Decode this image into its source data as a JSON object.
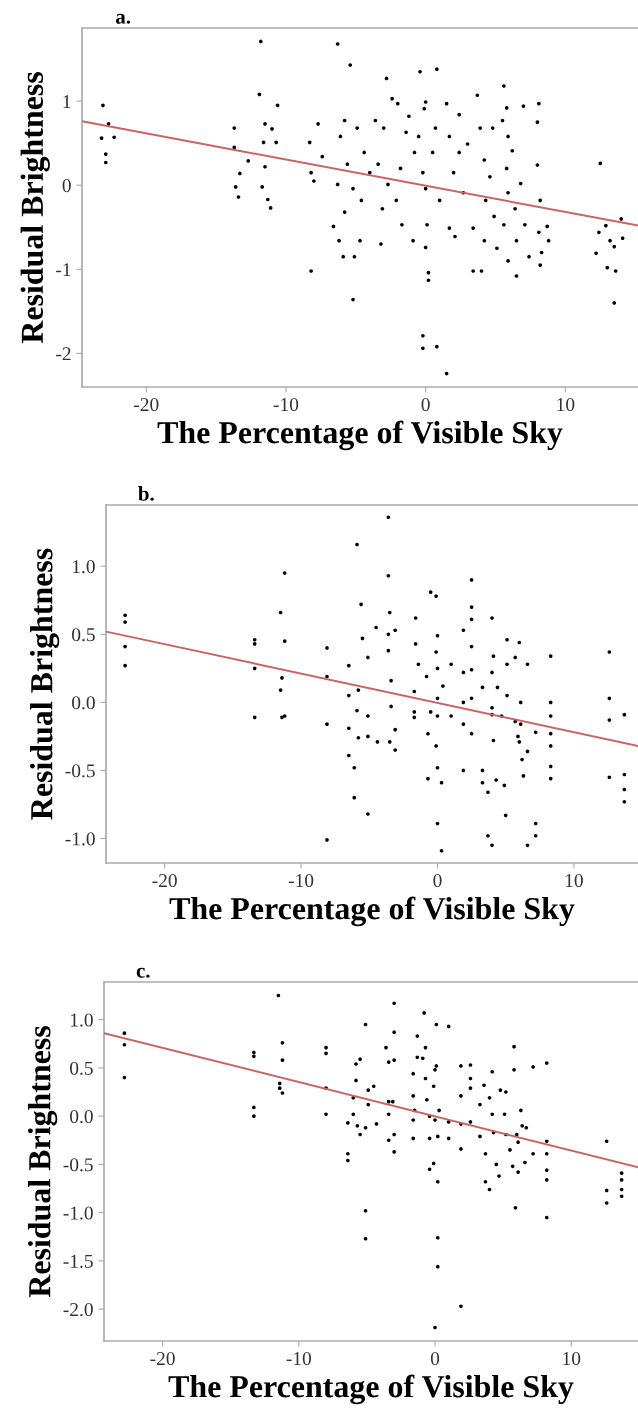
{
  "chart_data": [
    {
      "type": "scatter",
      "title": "a.",
      "xlabel": "The Percentage of Visible Sky",
      "ylabel": "Residual Brightness",
      "xlim": [
        -24.6,
        15.2
      ],
      "ylim": [
        -2.4,
        1.87
      ],
      "xticks": [
        -20,
        -10,
        0,
        10
      ],
      "yticks": [
        {
          "value": -2,
          "label": "-2"
        },
        {
          "value": -1,
          "label": "-1"
        },
        {
          "value": 0,
          "label": "0"
        },
        {
          "value": 1,
          "label": "1"
        }
      ],
      "grid": false,
      "legend": false,
      "series": [
        {
          "marker": "circle",
          "color": "#000000",
          "x": [
            -23.1,
            -23.2,
            -22.9,
            -22.9,
            -22.7,
            -22.3,
            -13.7,
            -13.7,
            -13.3,
            -13.6,
            -13.4,
            -12.7,
            -11.8,
            -11.9,
            -11.5,
            -11.6,
            -11.5,
            -11.7,
            -11.3,
            -11.1,
            -10.6,
            -11.0,
            -10.7,
            -8.3,
            -8.2,
            -8.0,
            -8.2,
            -7.7,
            -7.4,
            -6.3,
            -5.4,
            -5.2,
            -5.9,
            -5.1,
            -6.6,
            -6.2,
            -5.8,
            -6.1,
            -5.6,
            -6.3,
            -5.8,
            -5.2,
            -4.9,
            -4.6,
            -4.7,
            -4.4,
            -4.0,
            -3.6,
            -3.2,
            -3.1,
            -3.4,
            -2.8,
            -3.0,
            -2.7,
            -2.4,
            -2.0,
            -1.8,
            -1.7,
            -2.1,
            -1.4,
            -1.2,
            -0.9,
            -0.8,
            -0.4,
            -0.2,
            -0.2,
            0.0,
            -0.1,
            -0.5,
            -0.2,
            0.0,
            0.1,
            0.0,
            0.2,
            0.2,
            0.8,
            0.8,
            0.5,
            1.0,
            0.7,
            1.5,
            1.5,
            1.7,
            1.7,
            2.0,
            2.1,
            2.4,
            2.4,
            2.7,
            3.0,
            3.4,
            3.7,
            3.4,
            4.0,
            3.9,
            4.2,
            4.3,
            4.2,
            4.8,
            4.6,
            4.9,
            5.1,
            5.6,
            5.8,
            5.5,
            5.9,
            5.8,
            5.9,
            5.6,
            5.9,
            6.2,
            6.4,
            6.5,
            6.5,
            6.8,
            7.0,
            7.1,
            7.4,
            8.0,
            8.1,
            8.0,
            8.2,
            8.1,
            8.3,
            8.2,
            8.7,
            8.8,
            12.5,
            12.2,
            12.4,
            12.9,
            13.0,
            13.2,
            13.5,
            13.6,
            13.5,
            14.0,
            14.1
          ],
          "values": [
            0.95,
            0.56,
            0.37,
            0.27,
            0.73,
            0.57,
            0.68,
            0.45,
            0.14,
            -0.02,
            -0.14,
            0.29,
            1.71,
            1.08,
            0.73,
            0.51,
            0.22,
            -0.02,
            -0.17,
            -0.27,
            0.95,
            0.67,
            0.51,
            0.51,
            0.15,
            0.05,
            -1.02,
            0.73,
            0.34,
            1.68,
            1.43,
            -1.36,
            -0.85,
            -0.85,
            -0.49,
            -0.66,
            0.77,
            0.58,
            0.25,
            0.01,
            -0.32,
            -0.04,
            0.68,
            -0.18,
            -0.66,
            0.39,
            0.15,
            0.77,
            -0.7,
            -0.28,
            0.25,
            1.27,
            0.68,
            0.01,
            1.03,
            0.97,
            0.2,
            -0.47,
            -0.18,
            0.63,
            0.82,
            -0.66,
            0.39,
            1.35,
            -1.79,
            -1.94,
            0.99,
            0.91,
            0.58,
            0.15,
            -0.04,
            -0.47,
            -0.74,
            -1.04,
            -1.13,
            1.38,
            -1.92,
            0.39,
            -0.18,
            0.68,
            -2.24,
            0.97,
            0.58,
            -0.51,
            0.15,
            -0.61,
            0.84,
            0.39,
            -0.09,
            0.49,
            -0.51,
            1.07,
            -1.02,
            -1.02,
            0.68,
            0.3,
            -0.18,
            -0.66,
            0.68,
            0.1,
            -0.37,
            -0.75,
            1.18,
            0.92,
            0.77,
            0.58,
            0.2,
            -0.09,
            -0.47,
            -0.9,
            0.41,
            -0.28,
            -0.66,
            -1.08,
            0.02,
            0.94,
            -0.47,
            -0.85,
            0.75,
            0.97,
            0.24,
            -0.18,
            -0.56,
            -0.8,
            -0.95,
            -0.49,
            -0.66,
            0.26,
            -0.81,
            -0.56,
            -0.48,
            -0.98,
            -0.66,
            -1.4,
            -1.02,
            -0.73,
            -0.4,
            -0.63
          ]
        },
        {
          "type": "line",
          "marker": "none",
          "color": "#c86464",
          "x": [
            -24.6,
            15.2
          ],
          "values": [
            0.76,
            -0.48
          ]
        }
      ]
    },
    {
      "type": "scatter",
      "title": "b.",
      "xlabel": "The Percentage of Visible Sky",
      "ylabel": "Residual Brightness",
      "xlim": [
        -24.3,
        14.7
      ],
      "ylim": [
        -1.18,
        1.45
      ],
      "xticks": [
        -20,
        -10,
        0,
        10
      ],
      "yticks": [
        {
          "value": -1.0,
          "label": "-1.0"
        },
        {
          "value": -0.5,
          "label": "-0.5"
        },
        {
          "value": 0,
          "label": "0.0"
        },
        {
          "value": 0.5,
          "label": "0.5"
        },
        {
          "value": 1.0,
          "label": "1.0"
        }
      ],
      "grid": false,
      "legend": false,
      "series": [
        {
          "marker": "circle",
          "color": "#000000",
          "x": [
            -22.9,
            -22.9,
            -22.9,
            -22.9,
            -13.4,
            -13.4,
            -13.4,
            -13.4,
            -11.5,
            -11.2,
            -11.2,
            -11.4,
            -11.5,
            -11.4,
            -11.2,
            -8.1,
            -8.1,
            -8.1,
            -8.1,
            -5.9,
            -5.6,
            -6.5,
            -6.5,
            -6.5,
            -6.5,
            -6.1,
            -6.1,
            -5.8,
            -5.9,
            -5.8,
            -5.5,
            -5.1,
            -5.1,
            -5.1,
            -5.1,
            -4.5,
            -4.4,
            -3.6,
            -3.6,
            -3.5,
            -3.6,
            -3.6,
            -3.4,
            -3.4,
            -3.5,
            -3.1,
            -3.1,
            -3.1,
            -1.6,
            -1.6,
            -1.7,
            -1.7,
            -1.7,
            -1.4,
            -0.8,
            -0.5,
            -0.7,
            -0.7,
            -0.5,
            -0.1,
            0.0,
            -0.1,
            0.0,
            0.0,
            0.0,
            -0.1,
            0.0,
            0.0,
            0.3,
            0.3,
            0.4,
            1.0,
            1.0,
            1.9,
            1.9,
            1.9,
            1.9,
            1.9,
            2.5,
            2.5,
            2.5,
            2.5,
            2.5,
            2.5,
            2.5,
            3.3,
            3.3,
            3.3,
            3.7,
            3.7,
            4.0,
            4.0,
            4.1,
            4.0,
            4.0,
            4.0,
            4.1,
            4.3,
            4.4,
            4.7,
            4.9,
            5.0,
            5.1,
            5.1,
            5.1,
            5.7,
            5.7,
            5.9,
            6.0,
            6.1,
            6.1,
            6.2,
            6.3,
            6.0,
            6.6,
            6.6,
            6.6,
            7.2,
            7.2,
            7.2,
            8.3,
            8.3,
            8.3,
            8.3,
            8.3,
            8.3,
            8.3,
            12.6,
            12.6,
            12.6,
            12.6,
            13.7,
            13.7,
            13.7,
            13.7
          ],
          "values": [
            0.64,
            0.59,
            0.41,
            0.27,
            0.46,
            0.43,
            0.25,
            -0.11,
            0.66,
            0.95,
            0.45,
            0.18,
            0.09,
            -0.11,
            -0.1,
            0.4,
            0.19,
            -0.16,
            -1.01,
            1.16,
            0.72,
            0.27,
            0.05,
            -0.19,
            -0.39,
            -0.48,
            -0.7,
            0.09,
            -0.06,
            -0.26,
            0.47,
            0.33,
            -0.1,
            -0.82,
            -0.25,
            0.55,
            -0.29,
            1.36,
            0.93,
            0.66,
            0.5,
            0.38,
            0.16,
            -0.03,
            -0.29,
            0.53,
            -0.2,
            -0.35,
            0.62,
            0.43,
            0.08,
            -0.07,
            -0.11,
            0.28,
            0.19,
            0.81,
            -0.23,
            -0.56,
            -0.07,
            0.78,
            0.49,
            0.37,
            0.25,
            0.03,
            -0.1,
            -0.32,
            -0.48,
            -0.89,
            -0.59,
            -1.09,
            0.12,
            0.28,
            -0.1,
            0.53,
            0.22,
            0.0,
            -0.16,
            -0.5,
            0.9,
            0.7,
            0.61,
            0.41,
            0.24,
            0.03,
            -0.23,
            0.11,
            -0.5,
            -0.59,
            -0.66,
            -0.98,
            0.62,
            -1.05,
            0.34,
            0.22,
            -0.04,
            -0.09,
            -0.28,
            -0.57,
            0.11,
            -0.1,
            -0.61,
            -0.83,
            0.46,
            0.28,
            0.05,
            0.33,
            -0.14,
            -0.25,
            0.44,
            0.0,
            -0.16,
            -0.42,
            -0.54,
            -0.29,
            0.28,
            -0.36,
            -1.05,
            -0.22,
            -0.89,
            -0.98,
            0.34,
            0.0,
            -0.1,
            -0.23,
            -0.32,
            -0.47,
            -0.56,
            0.37,
            0.03,
            -0.13,
            -0.55,
            -0.09,
            -0.53,
            -0.64,
            -0.73
          ]
        },
        {
          "type": "line",
          "marker": "none",
          "color": "#c86464",
          "x": [
            -24.3,
            14.7
          ],
          "values": [
            0.52,
            -0.32
          ]
        }
      ]
    },
    {
      "type": "scatter",
      "title": "c.",
      "xlabel": "The Percentage of Visible Sky",
      "ylabel": "Residual Brightness",
      "xlim": [
        -24.3,
        14.9
      ],
      "ylim": [
        -2.33,
        1.39
      ],
      "xticks": [
        -20,
        -10,
        0,
        10
      ],
      "yticks": [
        {
          "value": -2.0,
          "label": "-2.0"
        },
        {
          "value": -1.5,
          "label": "-1.5"
        },
        {
          "value": -1.0,
          "label": "-1.0"
        },
        {
          "value": -0.5,
          "label": "-0.5"
        },
        {
          "value": 0,
          "label": "0.0"
        },
        {
          "value": 0.5,
          "label": "0.5"
        },
        {
          "value": 1.0,
          "label": "1.0"
        }
      ],
      "grid": false,
      "legend": false,
      "series": [
        {
          "marker": "circle",
          "color": "#000000",
          "x": [
            -22.8,
            -22.8,
            -22.8,
            -13.3,
            -13.3,
            -13.3,
            -13.3,
            -11.5,
            -11.2,
            -11.2,
            -11.4,
            -11.4,
            -11.2,
            -8.0,
            -8.0,
            -8.0,
            -8.0,
            -6.4,
            -6.4,
            -6.4,
            -5.8,
            -5.8,
            -6.0,
            -6.0,
            -5.7,
            -5.5,
            -5.5,
            -5.1,
            -5.1,
            -5.1,
            -4.9,
            -4.9,
            -5.1,
            -4.5,
            -4.3,
            -3.6,
            -3.4,
            -3.4,
            -3.4,
            -3.4,
            -3.0,
            -3.0,
            -3.0,
            -3.1,
            -3.0,
            -3.0,
            -1.6,
            -1.6,
            -1.6,
            -1.6,
            -1.5,
            -1.3,
            -1.3,
            -0.9,
            -0.8,
            -0.7,
            -0.7,
            -0.6,
            -0.4,
            -0.4,
            -0.4,
            0.0,
            0.0,
            0.1,
            0.1,
            -0.1,
            0.0,
            0.2,
            0.2,
            0.2,
            0.2,
            -0.1,
            0.3,
            1.0,
            1.0,
            1.0,
            1.9,
            1.9,
            1.9,
            1.9,
            1.9,
            2.6,
            2.6,
            2.6,
            2.6,
            3.3,
            3.3,
            3.6,
            3.7,
            3.7,
            4.0,
            4.0,
            4.2,
            4.2,
            4.3,
            4.5,
            4.7,
            4.8,
            5.1,
            5.2,
            5.2,
            5.5,
            5.7,
            5.8,
            5.9,
            5.8,
            6.0,
            6.1,
            6.1,
            6.3,
            6.4,
            6.6,
            6.7,
            7.2,
            7.2,
            8.2,
            8.2,
            8.2,
            8.2,
            8.2,
            8.2,
            12.6,
            12.6,
            12.6,
            13.7,
            13.7,
            13.7,
            13.7
          ],
          "values": [
            0.86,
            0.74,
            0.4,
            0.66,
            0.62,
            0.09,
            0.0,
            1.25,
            0.76,
            0.58,
            0.34,
            0.29,
            0.24,
            0.71,
            0.65,
            0.29,
            0.02,
            -0.39,
            -0.46,
            -0.07,
            0.54,
            0.37,
            0.19,
            0.02,
            -0.1,
            -0.19,
            0.59,
            0.95,
            -0.98,
            -1.27,
            0.27,
            0.12,
            -0.12,
            0.31,
            -0.08,
            0.71,
            0.56,
            0.15,
            0.02,
            -0.25,
            1.17,
            0.87,
            0.58,
            0.15,
            -0.19,
            -0.37,
            0.44,
            0.21,
            -0.04,
            -0.23,
            0.06,
            0.83,
            0.61,
            0.6,
            1.07,
            0.71,
            0.39,
            0.17,
            -0.23,
            -0.55,
            0.0,
            0.48,
            -2.19,
            0.95,
            0.52,
            0.31,
            -0.04,
            -0.21,
            -0.68,
            -1.26,
            -1.56,
            -0.49,
            0.06,
            0.93,
            -0.06,
            -0.23,
            0.52,
            0.21,
            -0.08,
            -0.34,
            -1.97,
            0.53,
            0.39,
            0.29,
            -0.06,
            0.12,
            -0.21,
            0.32,
            -0.39,
            -0.68,
            -0.76,
            0.19,
            0.46,
            0.02,
            -0.17,
            -0.5,
            -0.62,
            0.27,
            0.02,
            -0.19,
            0.25,
            -0.35,
            -0.52,
            0.72,
            -0.95,
            0.48,
            -0.19,
            -0.27,
            -0.58,
            0.06,
            -0.1,
            -0.48,
            -0.12,
            -0.39,
            0.51,
            0.55,
            -0.26,
            -0.39,
            -0.56,
            -0.66,
            -1.05,
            -0.26,
            -0.77,
            -0.9,
            -0.59,
            -0.66,
            -0.76,
            -0.83
          ]
        },
        {
          "type": "line",
          "marker": "none",
          "color": "#c86464",
          "x": [
            -24.3,
            14.9
          ],
          "values": [
            0.86,
            -0.53
          ]
        }
      ]
    }
  ]
}
